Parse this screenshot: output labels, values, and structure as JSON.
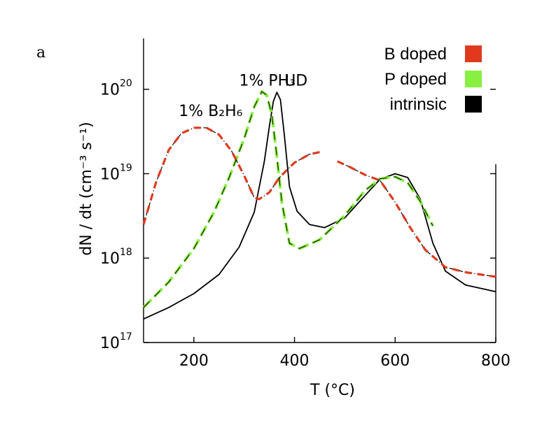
{
  "chart_data": {
    "type": "line",
    "panel_label": "a",
    "xlabel": "T (°C)",
    "ylabel": "dN / dt (cm⁻³ s⁻¹)",
    "xlim": [
      100,
      800
    ],
    "ylim": [
      1e+17,
      4e+20
    ],
    "yscale": "log",
    "grid": false,
    "legend_position": "top-right",
    "xticks": [
      {
        "value": 200,
        "label": "200"
      },
      {
        "value": 400,
        "label": "400"
      },
      {
        "value": 600,
        "label": "600"
      },
      {
        "value": 800,
        "label": "800"
      }
    ],
    "yticks": [
      {
        "value": 1e+17,
        "base": "10",
        "exp": "17"
      },
      {
        "value": 1e+18,
        "base": "10",
        "exp": "18"
      },
      {
        "value": 1e+19,
        "base": "10",
        "exp": "19"
      },
      {
        "value": 1e+20,
        "base": "10",
        "exp": "20"
      }
    ],
    "annotations": [
      {
        "text": "1% PH₃",
        "x": 290,
        "y": 1.1e+20
      },
      {
        "text": "UD",
        "x": 380,
        "y": 1.1e+20
      },
      {
        "text": "1% B₂H₆",
        "x": 170,
        "y": 4.8e+19
      }
    ],
    "legend": [
      {
        "name": "B doped",
        "color": "#e03a1e"
      },
      {
        "name": "P doped",
        "color": "#88f040"
      },
      {
        "name": "intrinsic",
        "color": "#000000"
      }
    ],
    "series": [
      {
        "name": "intrinsic",
        "color": "#000000",
        "style": "solid",
        "points": [
          [
            100,
            1.9e+17
          ],
          [
            150,
            2.6e+17
          ],
          [
            200,
            3.8e+17
          ],
          [
            250,
            6.4e+17
          ],
          [
            290,
            1.35e+18
          ],
          [
            320,
            3.5e+18
          ],
          [
            340,
            1.4e+19
          ],
          [
            350,
            3.6e+19
          ],
          [
            358,
            7.2e+19
          ],
          [
            365,
            9.2e+19
          ],
          [
            372,
            7.5e+19
          ],
          [
            380,
            2.8e+19
          ],
          [
            390,
            7e+18
          ],
          [
            405,
            3.6e+18
          ],
          [
            430,
            2.5e+18
          ],
          [
            460,
            2.3e+18
          ],
          [
            500,
            3e+18
          ],
          [
            540,
            5.5e+18
          ],
          [
            570,
            8.6e+18
          ],
          [
            600,
            1e+19
          ],
          [
            625,
            9e+18
          ],
          [
            650,
            5e+18
          ],
          [
            675,
            1.5e+18
          ],
          [
            700,
            7e+17
          ],
          [
            740,
            4.8e+17
          ],
          [
            800,
            4e+17
          ]
        ]
      },
      {
        "name": "P doped",
        "color": "#88f040",
        "style": "dashed",
        "points": [
          [
            100,
            2.6e+17
          ],
          [
            150,
            5.2e+17
          ],
          [
            200,
            1.3e+18
          ],
          [
            240,
            3.5e+18
          ],
          [
            270,
            9e+18
          ],
          [
            300,
            2.6e+19
          ],
          [
            320,
            6.2e+19
          ],
          [
            335,
            9.4e+19
          ],
          [
            345,
            8.5e+19
          ],
          [
            355,
            5e+19
          ],
          [
            365,
            1.6e+19
          ],
          [
            375,
            4.5e+18
          ],
          [
            390,
            1.5e+18
          ],
          [
            410,
            1.3e+18
          ],
          [
            450,
            1.65e+18
          ],
          [
            500,
            3.2e+18
          ],
          [
            540,
            6.3e+18
          ],
          [
            570,
            8.7e+18
          ],
          [
            600,
            9.2e+18
          ],
          [
            625,
            7.8e+18
          ],
          [
            650,
            4.7e+18
          ],
          [
            675,
            2.4e+18
          ]
        ]
      },
      {
        "name": "B doped",
        "color": "#e03a1e",
        "style": "dashdot",
        "points": [
          [
            100,
            2.5e+18
          ],
          [
            125,
            8e+18
          ],
          [
            150,
            1.9e+19
          ],
          [
            175,
            3e+19
          ],
          [
            200,
            3.5e+19
          ],
          [
            225,
            3.5e+19
          ],
          [
            250,
            2.9e+19
          ],
          [
            275,
            1.85e+19
          ],
          [
            300,
            9.5e+18
          ],
          [
            320,
            5.2e+18
          ],
          [
            330,
            5e+18
          ],
          [
            350,
            6e+18
          ],
          [
            370,
            9e+18
          ],
          [
            400,
            1.35e+19
          ],
          [
            430,
            1.7e+19
          ],
          [
            450,
            1.8e+19
          ]
        ]
      },
      {
        "name": "B doped",
        "color": "#e03a1e",
        "style": "dashdot",
        "points": [
          [
            485,
            1.4e+19
          ],
          [
            510,
            1.2e+19
          ],
          [
            540,
            9.7e+18
          ],
          [
            570,
            8.3e+18
          ],
          [
            600,
            4.6e+18
          ],
          [
            630,
            2.3e+18
          ],
          [
            660,
            1.25e+18
          ],
          [
            700,
            7.8e+17
          ],
          [
            740,
            6.8e+17
          ],
          [
            800,
            6e+17
          ]
        ]
      }
    ]
  }
}
